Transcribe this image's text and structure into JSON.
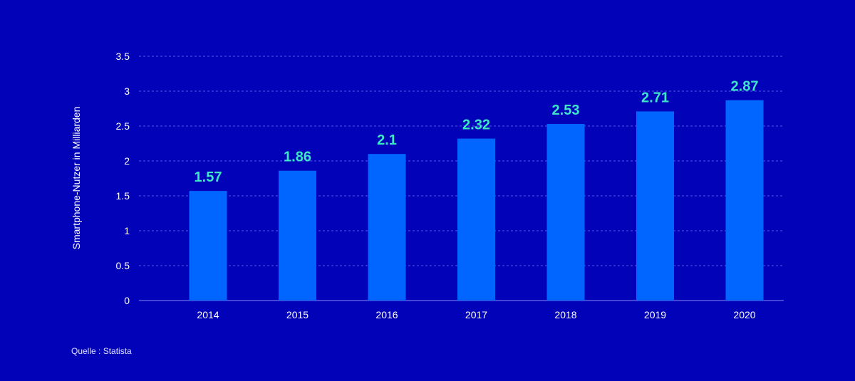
{
  "chart_data": {
    "type": "bar",
    "title": "",
    "xlabel": "",
    "ylabel": "Smartphone-Nutzer in Milliarden",
    "categories": [
      "2014",
      "2015",
      "2016",
      "2017",
      "2018",
      "2019",
      "2020"
    ],
    "values": [
      1.57,
      1.86,
      2.1,
      2.32,
      2.53,
      2.71,
      2.87
    ],
    "value_labels": [
      "1.57",
      "1.86",
      "2.1",
      "2.32",
      "2.53",
      "2.71",
      "2.87"
    ],
    "ylim": [
      0,
      3.5
    ],
    "yticks": [
      "0",
      "0.5",
      "1",
      "1.5",
      "2",
      "2.5",
      "3",
      "3.5"
    ],
    "grid": true,
    "colors": {
      "background": "#0202b8",
      "bar": "#0066ff",
      "value_label": "#3ee6c8",
      "grid": "#5a5ae0"
    }
  },
  "source": "Quelle : Statista"
}
